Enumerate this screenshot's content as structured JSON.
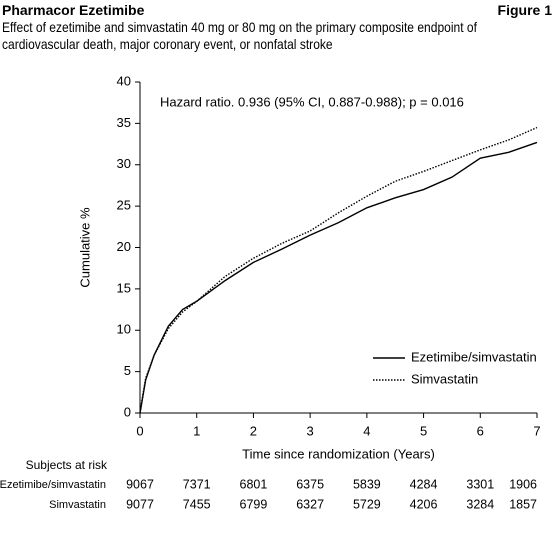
{
  "header": {
    "title": "Pharmacor Ezetimibe",
    "figure": "Figure 1"
  },
  "chart_data": {
    "type": "line",
    "title": "Effect of ezetimibe and simvastatin 40 mg or 80 mg on the primary composite endpoint of cardiovascular death, major coronary event, or nonfatal stroke",
    "annotation": "Hazard ratio. 0.936 (95% CI, 0.887-0.988); p = 0.016",
    "xlabel": "Time since randomization (Years)",
    "ylabel": "Cumulative %",
    "x": [
      0,
      0.05,
      0.1,
      0.25,
      0.5,
      0.75,
      1,
      1.5,
      2,
      2.5,
      3,
      3.5,
      4,
      4.5,
      5,
      5.5,
      6,
      6.5,
      7
    ],
    "series": [
      {
        "name": "Ezetimibe/simvastatin",
        "color": "#000000",
        "dash": "solid",
        "values": [
          0,
          2,
          4,
          7,
          10.5,
          12.5,
          13.5,
          16,
          18.2,
          19.8,
          21.5,
          23,
          24.8,
          26,
          27,
          28.5,
          30.8,
          31.5,
          32.7
        ]
      },
      {
        "name": "Simvastatin",
        "color": "#000000",
        "dash": "dotted",
        "values": [
          0,
          2.2,
          4.2,
          7,
          10.2,
          12.2,
          13.5,
          16.5,
          18.7,
          20.5,
          22,
          24.2,
          26.2,
          28,
          29.2,
          30.5,
          31.8,
          33,
          34.5
        ]
      }
    ],
    "xlim": [
      0,
      7
    ],
    "xticks": [
      0,
      1,
      2,
      3,
      4,
      5,
      6,
      7
    ],
    "ylim": [
      0,
      40
    ],
    "yticks": [
      0,
      5,
      10,
      15,
      20,
      25,
      30,
      35,
      40
    ],
    "grid": false,
    "legend": "lower right",
    "risk_table": {
      "title": "Subjects at risk",
      "rows": [
        {
          "name": "Ezetimibe/simvastatin",
          "values": [
            9067,
            7371,
            6801,
            6375,
            5839,
            4284,
            3301,
            1906
          ]
        },
        {
          "name": "Simvastatin",
          "values": [
            9077,
            7455,
            6799,
            6327,
            5729,
            4206,
            3284,
            1857
          ]
        }
      ]
    }
  }
}
